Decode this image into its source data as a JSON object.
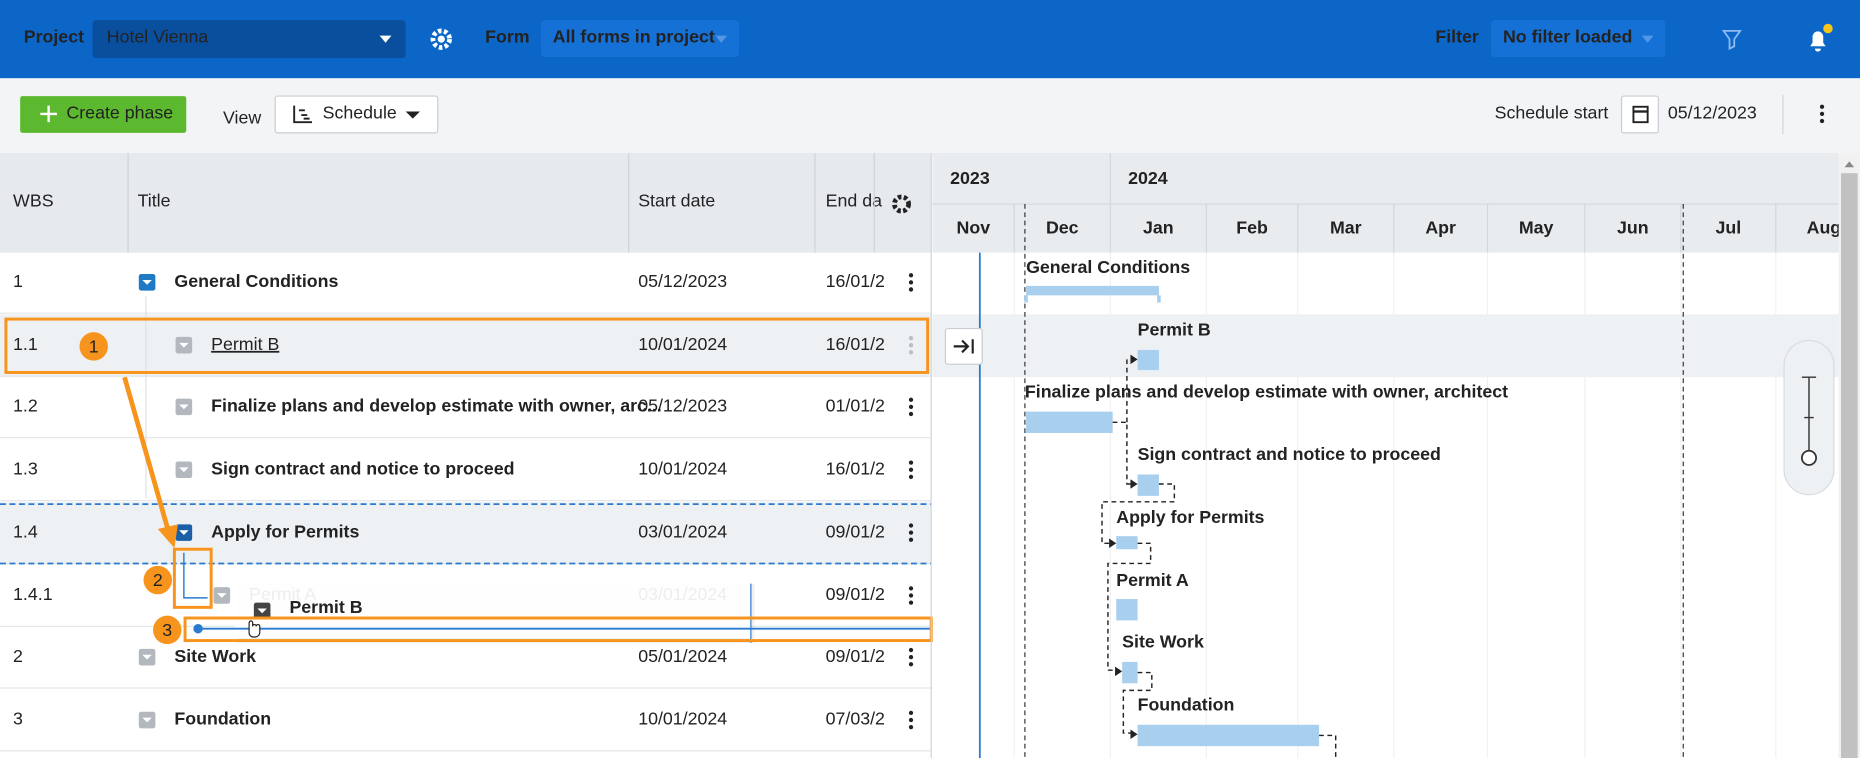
{
  "header": {
    "project_label": "Project",
    "project": "Hotel Vienna",
    "form_label": "Form",
    "form": "All forms in project",
    "filter_label": "Filter",
    "filter": "No filter loaded"
  },
  "toolbar": {
    "create_phase": "Create phase",
    "view_label": "View",
    "view": "Schedule",
    "schedule_start_label": "Schedule start",
    "schedule_start": "05/12/2023"
  },
  "table": {
    "columns": [
      "WBS",
      "Title",
      "Start date",
      "End da"
    ],
    "rows": [
      [
        "1",
        "General Conditions",
        "05/12/2023",
        "16/01/2"
      ],
      [
        "1.1",
        "Permit B",
        "10/01/2024",
        "16/01/2"
      ],
      [
        "1.2",
        "Finalize plans and develop estimate with owner, arc...",
        "05/12/2023",
        "01/01/2"
      ],
      [
        "1.3",
        "Sign contract and notice to proceed",
        "10/01/2024",
        "16/01/2"
      ],
      [
        "1.4",
        "Apply for Permits",
        "03/01/2024",
        "09/01/2"
      ],
      [
        "1.4.1",
        "Permit A",
        "03/01/2024",
        "09/01/2"
      ],
      [
        "2",
        "Site Work",
        "05/01/2024",
        "09/01/2"
      ],
      [
        "3",
        "Foundation",
        "10/01/2024",
        "07/03/2"
      ]
    ]
  },
  "drag": {
    "label": "Permit B"
  },
  "annotations": [
    "1",
    "2",
    "3"
  ],
  "gantt": {
    "years": [
      "2023",
      "2024"
    ],
    "months": [
      "Nov",
      "Dec",
      "Jan",
      "Feb",
      "Mar",
      "Apr",
      "May",
      "Jun",
      "Jul",
      "Aug"
    ],
    "bars": [
      "General Conditions",
      "Permit B",
      "Finalize plans and develop estimate with owner, architect",
      "Sign contract and notice to proceed",
      "Apply for Permits",
      "Permit A",
      "Site Work",
      "Foundation"
    ]
  }
}
